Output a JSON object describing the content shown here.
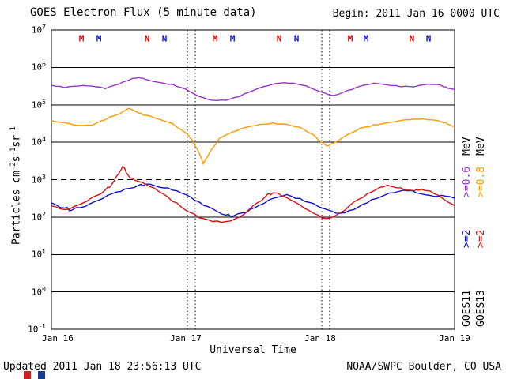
{
  "header": {
    "title": "GOES Electron Flux (5 minute data)",
    "begin": "Begin: 2011 Jan 16 0000 UTC"
  },
  "footer": {
    "updated": "Updated 2011 Jan 18 23:56:13 UTC",
    "credit": "NOAA/SWPC Boulder, CO USA"
  },
  "axes": {
    "x_label": "Universal Time",
    "y_label_parts": [
      [
        "Particles cm",
        0
      ],
      [
        "-2",
        1
      ],
      [
        "s",
        0
      ],
      [
        "-1",
        1
      ],
      [
        "sr",
        0
      ],
      [
        "-1",
        1
      ]
    ]
  },
  "legend": {
    "unit": "MeV",
    "columns": [
      {
        "satellite": "GOES11",
        "energy": ">=0.6",
        "energy_color": "#9932cc",
        "energy2": ">=2",
        "energy2_color": "#1010dd"
      },
      {
        "satellite": "GOES13",
        "energy": ">=0.8",
        "energy_color": "#ff9900",
        "energy2": ">=2",
        "energy2_color": "#dd1010"
      }
    ]
  },
  "logo": {
    "colors": [
      "#cc2222",
      "#ffffff",
      "#1a3a8c"
    ]
  },
  "chart_data": {
    "type": "line",
    "title": "GOES Electron Flux (5 minute data)",
    "xlabel": "Universal Time",
    "ylabel": "Particles cm-2 s-1 sr-1",
    "x_units": "days since 2011 Jan 16 0000 UTC",
    "y_units": "log10 flux",
    "x_range_days": [
      0,
      3
    ],
    "x_tick_labels": [
      "Jan 16",
      "Jan 17",
      "Jan 18",
      "Jan 19"
    ],
    "x_tick_t": [
      0,
      1,
      2,
      3
    ],
    "y_log_range": [
      -1,
      7
    ],
    "y_tick_exponents": [
      7,
      6,
      5,
      4,
      3,
      2,
      1,
      0,
      -1
    ],
    "threshold_log10": 3,
    "day_boundary_lines_t": [
      1.012,
      1.071,
      2.012,
      2.071
    ],
    "markers_row_log": 6.78,
    "grid": "solid horizontal decade lines, dashed alert line at 1e3, dotted vertical day lines",
    "legend_position": "right, rotated",
    "markers": [
      {
        "label": "M",
        "t": 0.224,
        "color": "#dd0000"
      },
      {
        "label": "M",
        "t": 0.353,
        "color": "#1010dd"
      },
      {
        "label": "N",
        "t": 0.712,
        "color": "#dd0000"
      },
      {
        "label": "N",
        "t": 0.841,
        "color": "#1010dd"
      },
      {
        "label": "M",
        "t": 1.218,
        "color": "#dd0000"
      },
      {
        "label": "M",
        "t": 1.347,
        "color": "#1010dd"
      },
      {
        "label": "N",
        "t": 1.694,
        "color": "#dd0000"
      },
      {
        "label": "N",
        "t": 1.824,
        "color": "#1010dd"
      },
      {
        "label": "M",
        "t": 2.224,
        "color": "#dd0000"
      },
      {
        "label": "M",
        "t": 2.341,
        "color": "#1010dd"
      },
      {
        "label": "N",
        "t": 2.682,
        "color": "#dd0000"
      },
      {
        "label": "N",
        "t": 2.806,
        "color": "#1010dd"
      }
    ],
    "series": [
      {
        "name": "GOES11 >=0.6 MeV",
        "color": "#9932cc",
        "points": [
          [
            0,
            5.52
          ],
          [
            0.1,
            5.46
          ],
          [
            0.2,
            5.5
          ],
          [
            0.3,
            5.5
          ],
          [
            0.4,
            5.43
          ],
          [
            0.5,
            5.55
          ],
          [
            0.6,
            5.7
          ],
          [
            0.65,
            5.73
          ],
          [
            0.7,
            5.68
          ],
          [
            0.8,
            5.6
          ],
          [
            0.9,
            5.55
          ],
          [
            1.0,
            5.42
          ],
          [
            1.1,
            5.22
          ],
          [
            1.2,
            5.12
          ],
          [
            1.3,
            5.12
          ],
          [
            1.4,
            5.22
          ],
          [
            1.5,
            5.38
          ],
          [
            1.6,
            5.5
          ],
          [
            1.7,
            5.58
          ],
          [
            1.8,
            5.58
          ],
          [
            1.9,
            5.5
          ],
          [
            2.0,
            5.35
          ],
          [
            2.1,
            5.25
          ],
          [
            2.2,
            5.38
          ],
          [
            2.3,
            5.5
          ],
          [
            2.4,
            5.58
          ],
          [
            2.5,
            5.53
          ],
          [
            2.6,
            5.48
          ],
          [
            2.7,
            5.48
          ],
          [
            2.8,
            5.55
          ],
          [
            2.9,
            5.52
          ],
          [
            2.95,
            5.44
          ],
          [
            3,
            5.42
          ]
        ]
      },
      {
        "name": "GOES13 >=0.8 MeV",
        "color": "#ff9900",
        "points": [
          [
            0,
            4.58
          ],
          [
            0.1,
            4.52
          ],
          [
            0.2,
            4.45
          ],
          [
            0.3,
            4.45
          ],
          [
            0.4,
            4.6
          ],
          [
            0.5,
            4.75
          ],
          [
            0.55,
            4.85
          ],
          [
            0.58,
            4.9
          ],
          [
            0.65,
            4.78
          ],
          [
            0.7,
            4.72
          ],
          [
            0.8,
            4.62
          ],
          [
            0.9,
            4.5
          ],
          [
            1.0,
            4.25
          ],
          [
            1.05,
            4.05
          ],
          [
            1.1,
            3.7
          ],
          [
            1.13,
            3.42
          ],
          [
            1.18,
            3.75
          ],
          [
            1.25,
            4.1
          ],
          [
            1.35,
            4.28
          ],
          [
            1.45,
            4.4
          ],
          [
            1.55,
            4.48
          ],
          [
            1.65,
            4.52
          ],
          [
            1.75,
            4.48
          ],
          [
            1.85,
            4.4
          ],
          [
            1.95,
            4.2
          ],
          [
            2.0,
            4.02
          ],
          [
            2.05,
            3.9
          ],
          [
            2.1,
            3.98
          ],
          [
            2.2,
            4.2
          ],
          [
            2.3,
            4.38
          ],
          [
            2.4,
            4.47
          ],
          [
            2.5,
            4.52
          ],
          [
            2.6,
            4.58
          ],
          [
            2.7,
            4.62
          ],
          [
            2.8,
            4.6
          ],
          [
            2.9,
            4.55
          ],
          [
            2.95,
            4.48
          ],
          [
            3,
            4.42
          ]
        ]
      },
      {
        "name": "GOES11 >=2 MeV",
        "color": "#1010dd",
        "points": [
          [
            0,
            2.38
          ],
          [
            0.1,
            2.24
          ],
          [
            0.15,
            2.18
          ],
          [
            0.25,
            2.28
          ],
          [
            0.35,
            2.45
          ],
          [
            0.45,
            2.62
          ],
          [
            0.55,
            2.75
          ],
          [
            0.65,
            2.85
          ],
          [
            0.7,
            2.88
          ],
          [
            0.8,
            2.8
          ],
          [
            0.9,
            2.72
          ],
          [
            1.0,
            2.6
          ],
          [
            1.1,
            2.4
          ],
          [
            1.2,
            2.22
          ],
          [
            1.3,
            2.05
          ],
          [
            1.35,
            2.02
          ],
          [
            1.45,
            2.12
          ],
          [
            1.55,
            2.32
          ],
          [
            1.65,
            2.5
          ],
          [
            1.75,
            2.6
          ],
          [
            1.85,
            2.5
          ],
          [
            1.95,
            2.36
          ],
          [
            2.05,
            2.2
          ],
          [
            2.15,
            2.1
          ],
          [
            2.25,
            2.2
          ],
          [
            2.35,
            2.38
          ],
          [
            2.45,
            2.54
          ],
          [
            2.55,
            2.65
          ],
          [
            2.65,
            2.7
          ],
          [
            2.75,
            2.62
          ],
          [
            2.85,
            2.55
          ],
          [
            2.9,
            2.58
          ],
          [
            3,
            2.5
          ]
        ]
      },
      {
        "name": "GOES13 >=2 MeV",
        "color": "#dd1010",
        "points": [
          [
            0,
            2.3
          ],
          [
            0.1,
            2.2
          ],
          [
            0.2,
            2.32
          ],
          [
            0.3,
            2.52
          ],
          [
            0.4,
            2.72
          ],
          [
            0.45,
            2.88
          ],
          [
            0.5,
            3.15
          ],
          [
            0.53,
            3.35
          ],
          [
            0.57,
            3.12
          ],
          [
            0.62,
            2.98
          ],
          [
            0.7,
            2.88
          ],
          [
            0.8,
            2.68
          ],
          [
            0.9,
            2.42
          ],
          [
            1.0,
            2.18
          ],
          [
            1.1,
            1.98
          ],
          [
            1.2,
            1.88
          ],
          [
            1.3,
            1.88
          ],
          [
            1.4,
            2.0
          ],
          [
            1.5,
            2.3
          ],
          [
            1.6,
            2.58
          ],
          [
            1.65,
            2.65
          ],
          [
            1.75,
            2.52
          ],
          [
            1.85,
            2.32
          ],
          [
            1.95,
            2.1
          ],
          [
            2.05,
            1.96
          ],
          [
            2.15,
            2.12
          ],
          [
            2.25,
            2.4
          ],
          [
            2.35,
            2.62
          ],
          [
            2.45,
            2.8
          ],
          [
            2.5,
            2.85
          ],
          [
            2.6,
            2.78
          ],
          [
            2.7,
            2.7
          ],
          [
            2.75,
            2.74
          ],
          [
            2.85,
            2.62
          ],
          [
            2.95,
            2.4
          ],
          [
            3,
            2.3
          ]
        ]
      }
    ]
  }
}
